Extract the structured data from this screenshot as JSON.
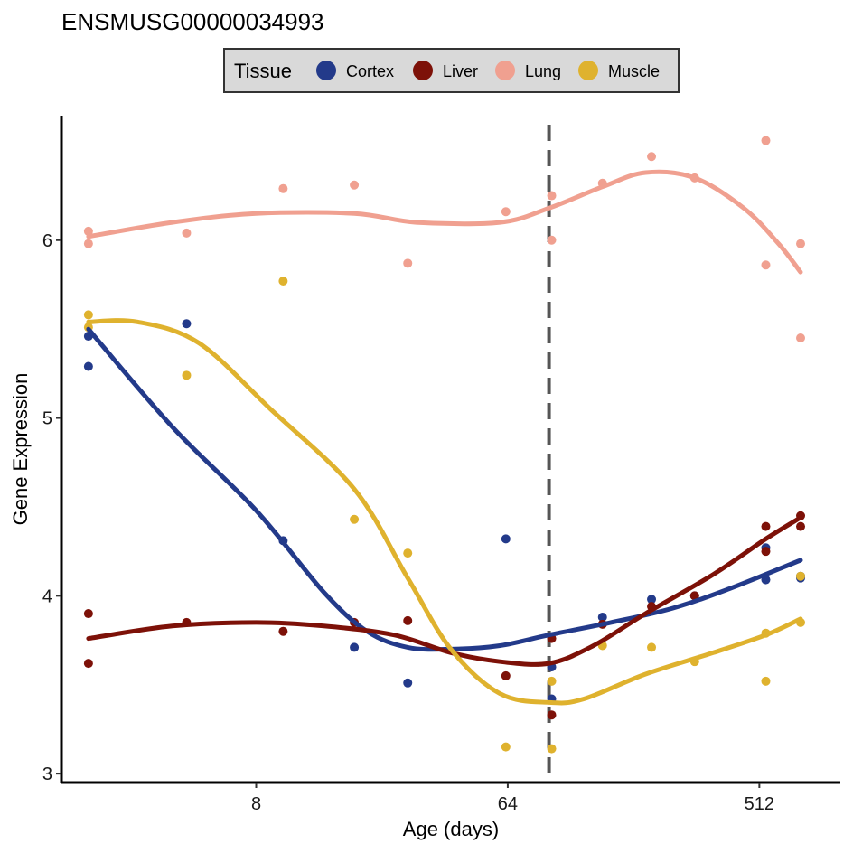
{
  "chart_data": {
    "type": "scatter",
    "title": "ENSMUSG00000034993",
    "xlabel": "Age (days)",
    "ylabel": "Gene Expression",
    "x_scale": "log2",
    "xlim": [
      1.6,
      1000
    ],
    "ylim": [
      2.95,
      6.7
    ],
    "x_ticks": [
      8,
      64,
      512
    ],
    "x_tick_labels": [
      "8",
      "64",
      "512"
    ],
    "y_ticks": [
      3,
      4,
      5,
      6
    ],
    "y_tick_labels": [
      "3",
      "4",
      "5",
      "6"
    ],
    "vline": {
      "x": 90,
      "style": "dashed",
      "color": "#555555"
    },
    "grid": false,
    "legend": {
      "title": "Tissue",
      "position": "top"
    },
    "series": [
      {
        "name": "Cortex",
        "color": "#233a8a",
        "points": [
          [
            2,
            5.46
          ],
          [
            2,
            5.29
          ],
          [
            4.5,
            5.53
          ],
          [
            10,
            4.31
          ],
          [
            18,
            3.71
          ],
          [
            28,
            3.51
          ],
          [
            63,
            4.32
          ],
          [
            92,
            3.6
          ],
          [
            92,
            3.42
          ],
          [
            140,
            3.88
          ],
          [
            210,
            3.98
          ],
          [
            300,
            4.0
          ],
          [
            540,
            4.27
          ],
          [
            540,
            4.09
          ],
          [
            720,
            4.11
          ],
          [
            720,
            4.1
          ]
        ],
        "smooth": [
          [
            2,
            5.5
          ],
          [
            4,
            4.95
          ],
          [
            8,
            4.48
          ],
          [
            14,
            4.02
          ],
          [
            20,
            3.8
          ],
          [
            28,
            3.71
          ],
          [
            40,
            3.7
          ],
          [
            60,
            3.72
          ],
          [
            90,
            3.78
          ],
          [
            150,
            3.85
          ],
          [
            250,
            3.93
          ],
          [
            400,
            4.04
          ],
          [
            720,
            4.2
          ]
        ]
      },
      {
        "name": "Liver",
        "color": "#7d1108",
        "points": [
          [
            2,
            3.9
          ],
          [
            2,
            3.62
          ],
          [
            4.5,
            3.85
          ],
          [
            10,
            3.8
          ],
          [
            18,
            3.85
          ],
          [
            28,
            3.86
          ],
          [
            63,
            3.55
          ],
          [
            92,
            3.76
          ],
          [
            92,
            3.33
          ],
          [
            140,
            3.84
          ],
          [
            210,
            3.94
          ],
          [
            300,
            4.0
          ],
          [
            540,
            4.39
          ],
          [
            540,
            4.25
          ],
          [
            720,
            4.45
          ],
          [
            720,
            4.39
          ]
        ],
        "smooth": [
          [
            2,
            3.76
          ],
          [
            4,
            3.83
          ],
          [
            8,
            3.85
          ],
          [
            14,
            3.83
          ],
          [
            25,
            3.78
          ],
          [
            40,
            3.68
          ],
          [
            60,
            3.63
          ],
          [
            90,
            3.62
          ],
          [
            130,
            3.72
          ],
          [
            200,
            3.9
          ],
          [
            350,
            4.12
          ],
          [
            540,
            4.32
          ],
          [
            720,
            4.44
          ]
        ]
      },
      {
        "name": "Lung",
        "color": "#f0a090",
        "points": [
          [
            2,
            6.05
          ],
          [
            2,
            5.98
          ],
          [
            4.5,
            6.04
          ],
          [
            10,
            6.29
          ],
          [
            18,
            6.31
          ],
          [
            28,
            5.87
          ],
          [
            63,
            6.16
          ],
          [
            92,
            6.25
          ],
          [
            92,
            6.0
          ],
          [
            140,
            6.32
          ],
          [
            210,
            6.47
          ],
          [
            300,
            6.35
          ],
          [
            540,
            6.56
          ],
          [
            540,
            5.86
          ],
          [
            720,
            5.98
          ],
          [
            720,
            5.45
          ]
        ],
        "smooth": [
          [
            2,
            6.02
          ],
          [
            4,
            6.1
          ],
          [
            8,
            6.15
          ],
          [
            18,
            6.15
          ],
          [
            30,
            6.1
          ],
          [
            60,
            6.1
          ],
          [
            90,
            6.18
          ],
          [
            140,
            6.3
          ],
          [
            200,
            6.38
          ],
          [
            300,
            6.35
          ],
          [
            450,
            6.18
          ],
          [
            600,
            5.98
          ],
          [
            720,
            5.82
          ]
        ]
      },
      {
        "name": "Muscle",
        "color": "#dfb22e",
        "points": [
          [
            2,
            5.58
          ],
          [
            2,
            5.51
          ],
          [
            4.5,
            5.24
          ],
          [
            10,
            5.77
          ],
          [
            18,
            4.43
          ],
          [
            28,
            4.24
          ],
          [
            63,
            3.15
          ],
          [
            92,
            3.52
          ],
          [
            92,
            3.14
          ],
          [
            140,
            3.72
          ],
          [
            210,
            3.71
          ],
          [
            300,
            3.63
          ],
          [
            540,
            3.79
          ],
          [
            540,
            3.52
          ],
          [
            720,
            3.85
          ],
          [
            720,
            4.11
          ]
        ],
        "smooth": [
          [
            2,
            5.54
          ],
          [
            3,
            5.54
          ],
          [
            5,
            5.42
          ],
          [
            9,
            5.05
          ],
          [
            18,
            4.6
          ],
          [
            28,
            4.1
          ],
          [
            40,
            3.7
          ],
          [
            60,
            3.45
          ],
          [
            90,
            3.4
          ],
          [
            120,
            3.42
          ],
          [
            200,
            3.56
          ],
          [
            350,
            3.68
          ],
          [
            540,
            3.78
          ],
          [
            720,
            3.87
          ]
        ]
      }
    ]
  }
}
